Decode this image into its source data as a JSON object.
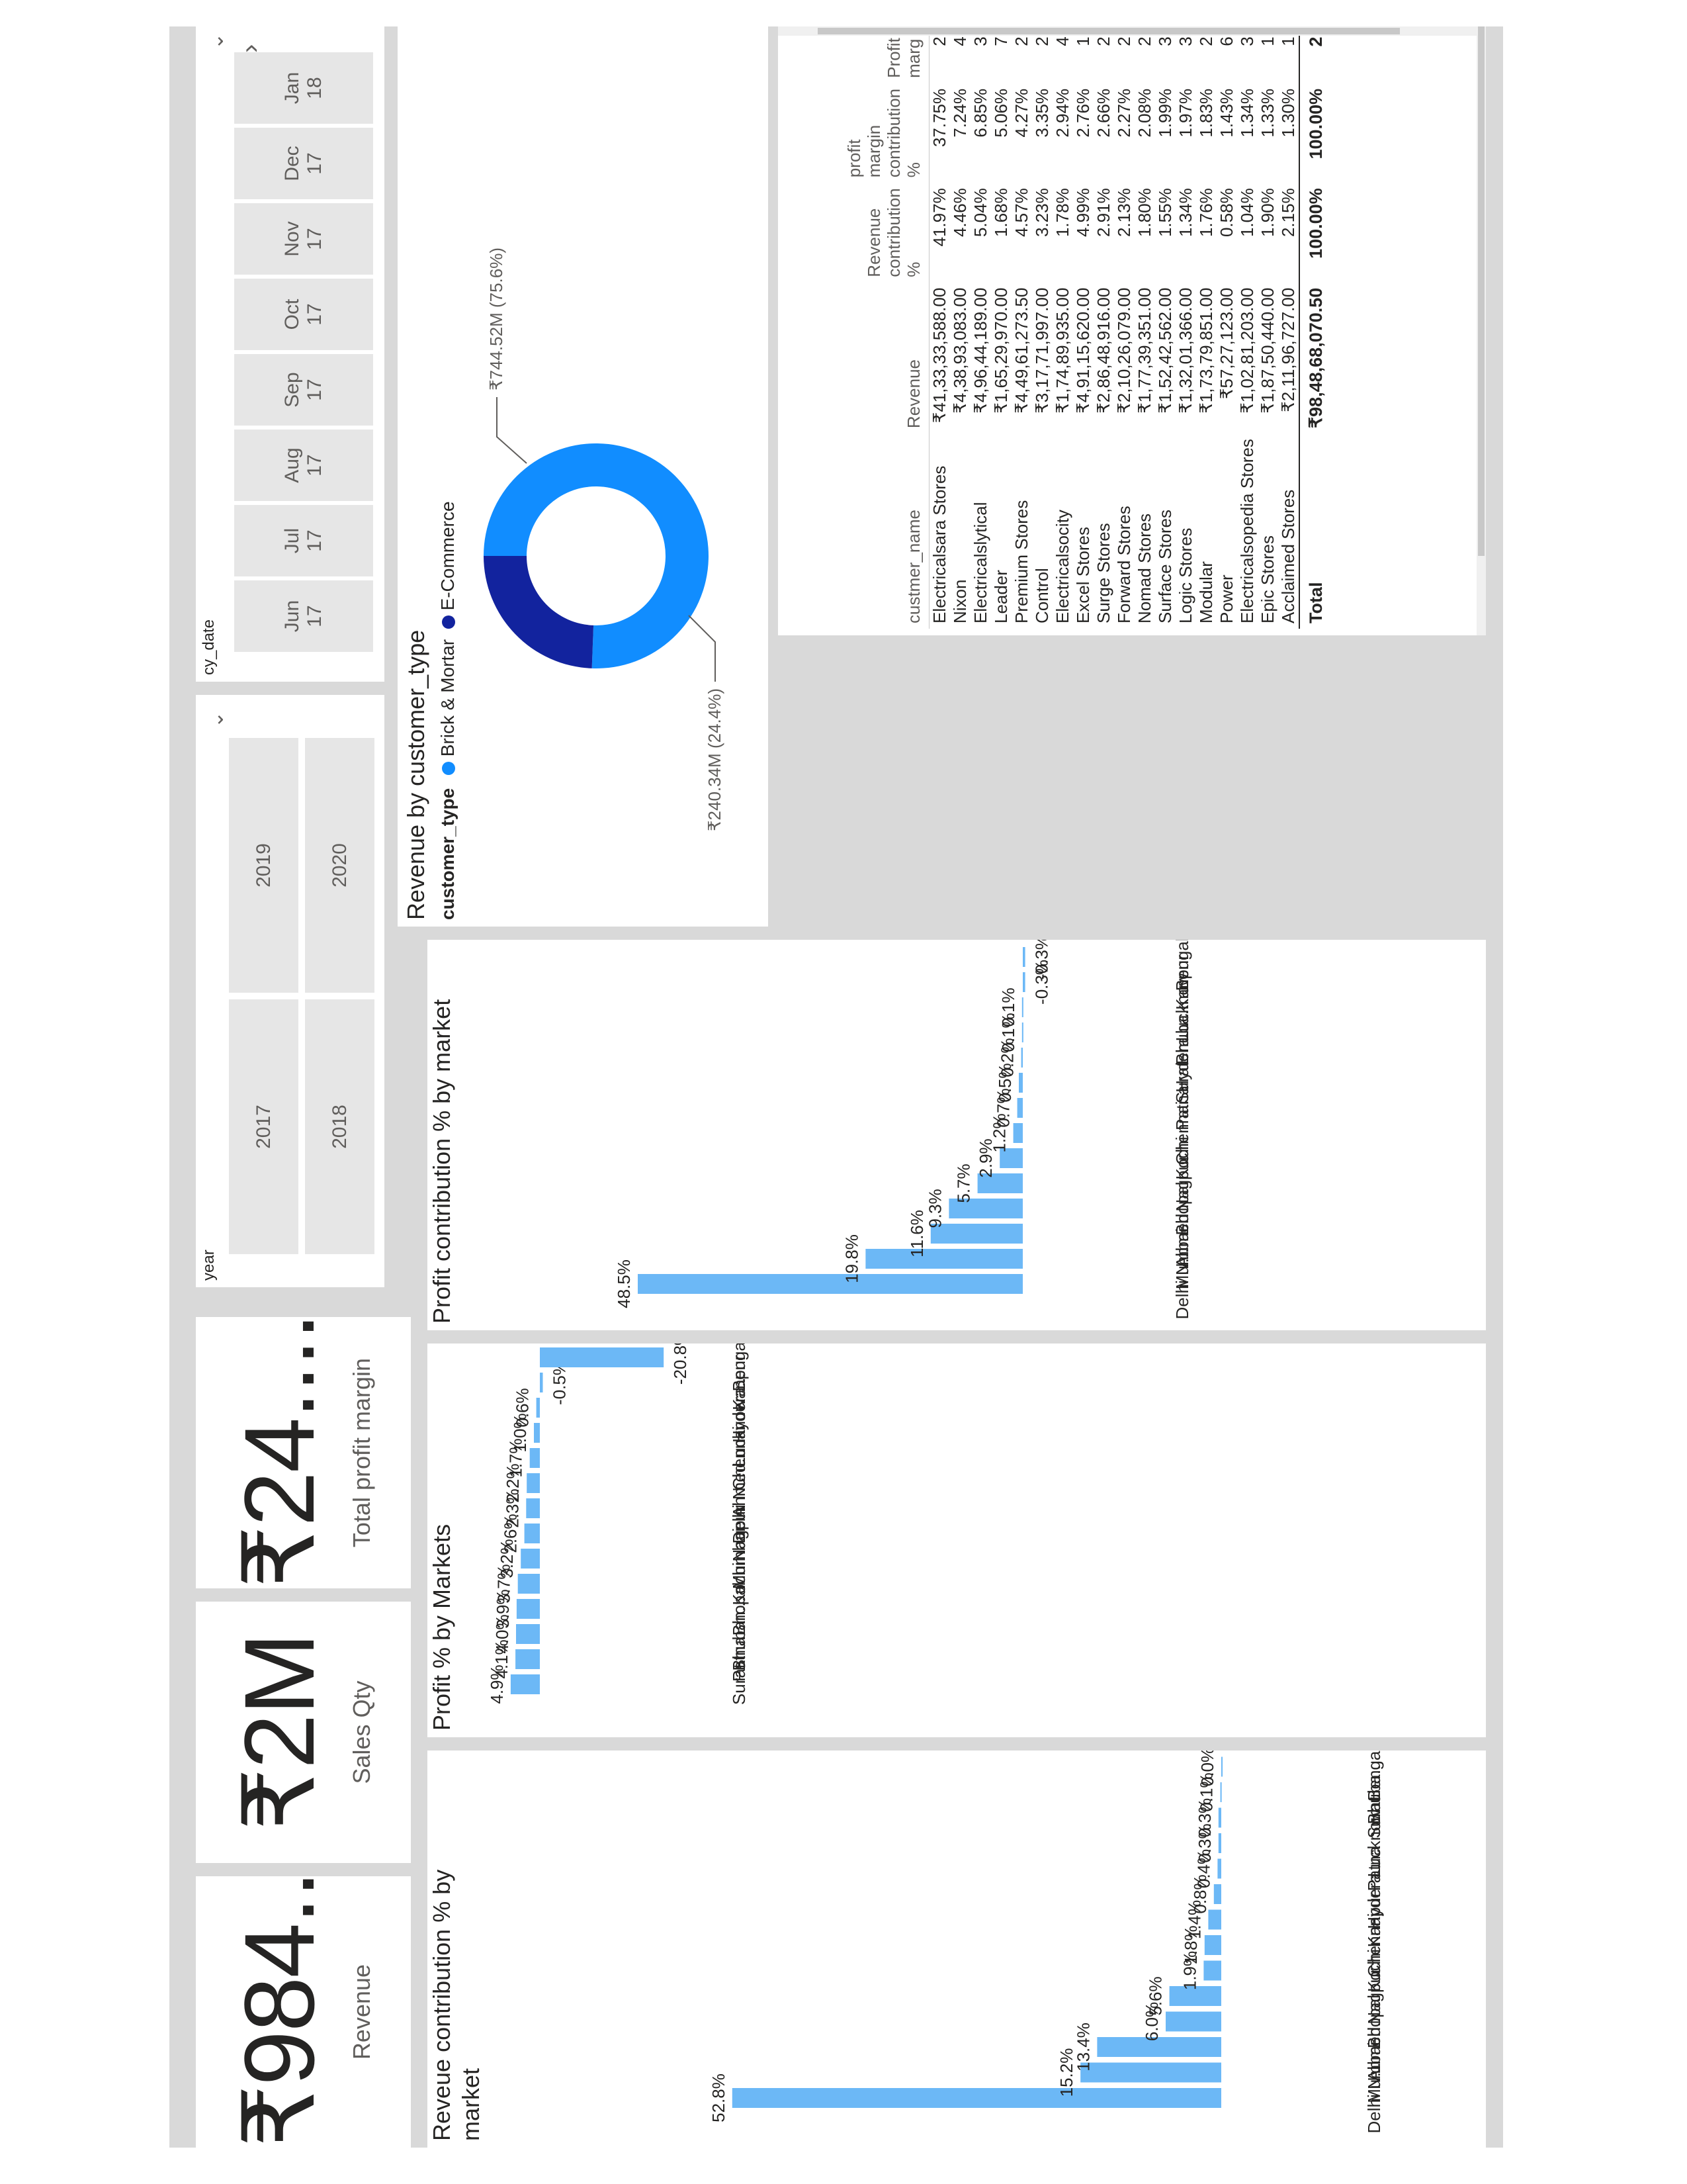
{
  "kpis": {
    "revenue": {
      "value": "₹984...",
      "label": "Revenue"
    },
    "sales_qty": {
      "value": "₹2M",
      "label": "Sales Qty"
    },
    "profit_margin": {
      "value": "₹24....",
      "label": "Total profit margin"
    }
  },
  "year_slicer": {
    "title": "year",
    "options": [
      "2017",
      "2018",
      "2019",
      "2020"
    ]
  },
  "date_slicer": {
    "title": "cy_date",
    "months": [
      {
        "m": "Jun",
        "y": "17"
      },
      {
        "m": "Jul",
        "y": "17"
      },
      {
        "m": "Aug",
        "y": "17"
      },
      {
        "m": "Sep",
        "y": "17"
      },
      {
        "m": "Oct",
        "y": "17"
      },
      {
        "m": "Nov",
        "y": "17"
      },
      {
        "m": "Dec",
        "y": "17"
      },
      {
        "m": "Jan",
        "y": "18"
      }
    ]
  },
  "colors": {
    "bar": "#6cb8f6",
    "brick": "#118dff",
    "ecom": "#12239e"
  },
  "chart_data": [
    {
      "type": "bar",
      "title": "Reveue contribution % by market",
      "categories": [
        "Delhi N...",
        "Mumbai",
        "Ahmed...",
        "Bhopal",
        "Nagpur",
        "Kochi",
        "Chennai",
        "Kanpur",
        "Hydera...",
        "Patna",
        "Lucknow",
        "Surat",
        "Bhuba...",
        "Bengal..."
      ],
      "values": [
        52.8,
        15.2,
        13.4,
        6.0,
        5.6,
        1.9,
        1.8,
        1.4,
        0.8,
        0.4,
        0.3,
        0.3,
        0.1,
        0.0
      ],
      "labels": [
        "52.8%",
        "15.2%",
        "13.4%",
        "6.0%",
        "5.6%",
        "1.9%",
        "1.8%",
        "1.4%",
        "0.8%",
        "0.4%",
        "0.3%",
        "0.3%",
        "0.1%",
        "0.0%"
      ]
    },
    {
      "type": "bar",
      "title": "Profit % by Markets",
      "categories": [
        "Surat",
        "Patna",
        "Bhuban...",
        "Bhopal",
        "Kochi",
        "Mumbai",
        "Nagpur",
        "Delhi N...",
        "Ahmed...",
        "Chennai",
        "Lucknow",
        "Hydera...",
        "Kanpur",
        "Bengal..."
      ],
      "values": [
        4.9,
        4.1,
        4.0,
        3.9,
        3.7,
        3.2,
        2.6,
        2.3,
        2.2,
        1.7,
        1.0,
        0.6,
        -0.5,
        -20.8
      ],
      "labels": [
        "4.9%",
        "4.1%",
        "4.0%",
        "3.9%",
        "3.7%",
        "3.2%",
        "2.6%",
        "2.3%",
        "2.2%",
        "1.7%",
        "1.0%",
        "0.6%",
        "-0.5%",
        "-20.8%"
      ]
    },
    {
      "type": "bar",
      "title": "Profit contribution % by market",
      "categories": [
        "Delhi N...",
        "Mumbai",
        "Ahmed...",
        "Bhopal",
        "Nagpur",
        "Kochi",
        "Chennai",
        "Patna",
        "Surat",
        "Hydera...",
        "Bhuba...",
        "Lucknow",
        "Kanpur",
        "Bengal..."
      ],
      "values": [
        48.5,
        19.8,
        11.6,
        9.3,
        5.7,
        2.9,
        1.2,
        0.7,
        0.5,
        0.2,
        0.1,
        0.1,
        -0.3,
        -0.3
      ],
      "labels": [
        "48.5%",
        "19.8%",
        "11.6%",
        "9.3%",
        "5.7%",
        "2.9%",
        "1.2%",
        "0.7%",
        "0.5%",
        "0.2%",
        "0.1%",
        "0.1%",
        "-0.3%",
        "-0.3%"
      ]
    },
    {
      "type": "pie",
      "title": "Revenue by customer_type",
      "legend_title": "customer_type",
      "slices": [
        {
          "name": "Brick & Mortar",
          "value": 744.52,
          "label": "₹744.52M (75.6%)"
        },
        {
          "name": "E-Commerce",
          "value": 240.34,
          "label": "₹240.34M (24.4%)"
        }
      ]
    }
  ],
  "table": {
    "headers": [
      "custmer_name",
      "Revenue",
      "Revenue contribution %",
      "profit margin contribution %",
      "Profit marg"
    ],
    "rows": [
      [
        "Electricalsara Stores",
        "₹41,33,33,588.00",
        "41.97%",
        "37.75%",
        "2."
      ],
      [
        "Nixon",
        "₹4,38,93,083.00",
        "4.46%",
        "7.24%",
        "4."
      ],
      [
        "Electricalslytical",
        "₹4,96,44,189.00",
        "5.04%",
        "6.85%",
        "3."
      ],
      [
        "Leader",
        "₹1,65,29,970.00",
        "1.68%",
        "5.06%",
        "7."
      ],
      [
        "Premium Stores",
        "₹4,49,61,273.50",
        "4.57%",
        "4.27%",
        "2."
      ],
      [
        "Control",
        "₹3,17,71,997.00",
        "3.23%",
        "3.35%",
        "2."
      ],
      [
        "Electricalsocity",
        "₹1,74,89,935.00",
        "1.78%",
        "2.94%",
        "4."
      ],
      [
        "Excel Stores",
        "₹4,91,15,620.00",
        "4.99%",
        "2.76%",
        "1."
      ],
      [
        "Surge Stores",
        "₹2,86,48,916.00",
        "2.91%",
        "2.66%",
        "2."
      ],
      [
        "Forward Stores",
        "₹2,10,26,079.00",
        "2.13%",
        "2.27%",
        "2."
      ],
      [
        "Nomad Stores",
        "₹1,77,39,351.00",
        "1.80%",
        "2.08%",
        "2."
      ],
      [
        "Surface Stores",
        "₹1,52,42,562.00",
        "1.55%",
        "1.99%",
        "3."
      ],
      [
        "Logic Stores",
        "₹1,32,01,366.00",
        "1.34%",
        "1.97%",
        "3."
      ],
      [
        "Modular",
        "₹1,73,79,851.00",
        "1.76%",
        "1.83%",
        "2."
      ],
      [
        "Power",
        "₹57,27,123.00",
        "0.58%",
        "1.43%",
        "6."
      ],
      [
        "Electricalsopedia Stores",
        "₹1,02,81,203.00",
        "1.04%",
        "1.34%",
        "3."
      ],
      [
        "Epic Stores",
        "₹1,87,50,440.00",
        "1.90%",
        "1.33%",
        "1."
      ],
      [
        "Acclaimed Stores",
        "₹2,11,96,727.00",
        "2.15%",
        "1.30%",
        "1."
      ]
    ],
    "total": [
      "Total",
      "₹98,48,68,070.50",
      "100.00%",
      "100.00%",
      "2."
    ]
  }
}
